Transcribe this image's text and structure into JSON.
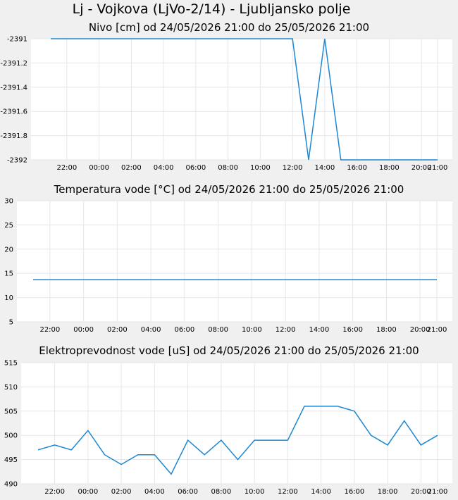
{
  "page": {
    "title": "Lj - Vojkova (LjVo-2/14) - Ljubljansko polje"
  },
  "colors": {
    "line": "#1e88d2",
    "grid": "#e6e6e6",
    "plot_bg": "#ffffff",
    "page_bg": "#f0f0f0"
  },
  "chart_data": [
    {
      "type": "line",
      "title": "Nivo [cm] od 24/05/2026 21:00 do 25/05/2026 21:00",
      "xlabel": "",
      "ylabel": "",
      "x_ticks": [
        "22:00",
        "00:00",
        "02:00",
        "04:00",
        "06:00",
        "08:00",
        "10:00",
        "12:00",
        "14:00",
        "16:00",
        "18:00",
        "20:00",
        "21:00"
      ],
      "y_ticks": [
        "-2391",
        "-2391.2",
        "-2391.4",
        "-2391.6",
        "-2391.8",
        "-2392"
      ],
      "ylim": [
        -2392,
        -2391
      ],
      "grid": true,
      "legend": "none",
      "series": [
        {
          "x": [
            "21:00",
            "22:00",
            "23:00",
            "00:00",
            "01:00",
            "02:00",
            "03:00",
            "04:00",
            "05:00",
            "06:00",
            "07:00",
            "08:00",
            "09:00",
            "10:00",
            "11:00",
            "12:00",
            "13:00",
            "14:00",
            "15:00",
            "16:00",
            "17:00",
            "18:00",
            "19:00",
            "20:00",
            "21:00"
          ],
          "values": [
            -2391,
            -2391,
            -2391,
            -2391,
            -2391,
            -2391,
            -2391,
            -2391,
            -2391,
            -2391,
            -2391,
            -2391,
            -2391,
            -2391,
            -2391,
            -2391,
            -2392,
            -2391,
            -2392,
            -2392,
            -2392,
            -2392,
            -2392,
            -2392,
            -2392
          ]
        }
      ]
    },
    {
      "type": "line",
      "title": "Temperatura vode [°C] od 24/05/2026 21:00 do 25/05/2026 21:00",
      "xlabel": "",
      "ylabel": "",
      "x_ticks": [
        "22:00",
        "00:00",
        "02:00",
        "04:00",
        "06:00",
        "08:00",
        "10:00",
        "12:00",
        "14:00",
        "16:00",
        "18:00",
        "20:00",
        "21:00"
      ],
      "y_ticks": [
        "30",
        "25",
        "20",
        "15",
        "10",
        "5"
      ],
      "ylim": [
        5,
        30
      ],
      "grid": true,
      "legend": "none",
      "series": [
        {
          "x": [
            "21:00",
            "22:00",
            "23:00",
            "00:00",
            "01:00",
            "02:00",
            "03:00",
            "04:00",
            "05:00",
            "06:00",
            "07:00",
            "08:00",
            "09:00",
            "10:00",
            "11:00",
            "12:00",
            "13:00",
            "14:00",
            "15:00",
            "16:00",
            "17:00",
            "18:00",
            "19:00",
            "20:00",
            "21:00"
          ],
          "values": [
            13.7,
            13.7,
            13.7,
            13.7,
            13.7,
            13.7,
            13.7,
            13.7,
            13.7,
            13.7,
            13.7,
            13.7,
            13.7,
            13.7,
            13.7,
            13.7,
            13.7,
            13.7,
            13.7,
            13.7,
            13.7,
            13.7,
            13.7,
            13.7,
            13.7
          ]
        }
      ]
    },
    {
      "type": "line",
      "title": "Elektroprevodnost vode [uS] od 24/05/2026 21:00 do 25/05/2026 21:00",
      "xlabel": "",
      "ylabel": "",
      "x_ticks": [
        "22:00",
        "00:00",
        "02:00",
        "04:00",
        "06:00",
        "08:00",
        "10:00",
        "12:00",
        "14:00",
        "16:00",
        "18:00",
        "20:00",
        "21:00"
      ],
      "y_ticks": [
        "515",
        "510",
        "505",
        "500",
        "495",
        "490"
      ],
      "ylim": [
        490,
        515
      ],
      "grid": true,
      "legend": "none",
      "series": [
        {
          "x": [
            "21:00",
            "22:00",
            "23:00",
            "00:00",
            "01:00",
            "02:00",
            "03:00",
            "04:00",
            "05:00",
            "06:00",
            "07:00",
            "08:00",
            "09:00",
            "10:00",
            "11:00",
            "12:00",
            "13:00",
            "14:00",
            "15:00",
            "16:00",
            "17:00",
            "18:00",
            "19:00",
            "20:00",
            "21:00"
          ],
          "values": [
            497,
            498,
            497,
            501,
            496,
            494,
            496,
            496,
            492,
            499,
            496,
            499,
            495,
            499,
            499,
            499,
            506,
            506,
            506,
            505,
            500,
            498,
            503,
            498,
            500
          ]
        }
      ]
    }
  ]
}
